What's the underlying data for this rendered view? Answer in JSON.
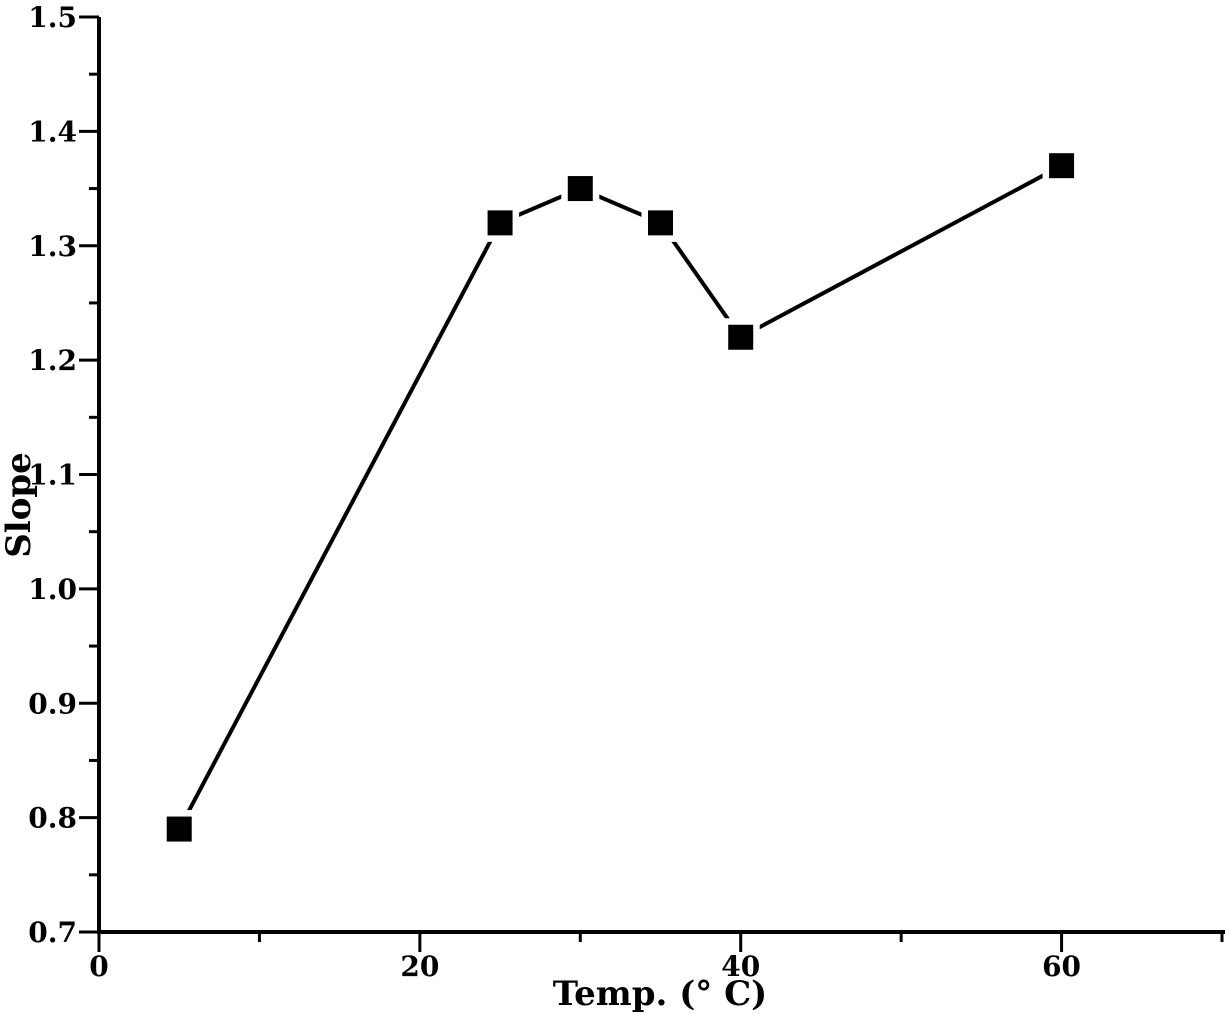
{
  "chart_data": {
    "type": "line",
    "title": "",
    "xlabel": "Temp. (° C)",
    "ylabel": "Slope",
    "xlim": [
      0,
      70
    ],
    "ylim": [
      0.7,
      1.5
    ],
    "x_ticks": [
      0,
      20,
      40,
      60
    ],
    "x_tick_labels": [
      "0",
      "20",
      "40",
      "60"
    ],
    "y_ticks": [
      0.7,
      0.8,
      0.9,
      1.0,
      1.1,
      1.2,
      1.3,
      1.4,
      1.5
    ],
    "y_tick_labels": [
      "0.7",
      "0.8",
      "0.9",
      "1.0",
      "1.1",
      "1.2",
      "1.3",
      "1.4",
      "1.5"
    ],
    "grid": false,
    "marker": "square",
    "color": "#000000",
    "series": [
      {
        "x": [
          5,
          25,
          30,
          35,
          40,
          60
        ],
        "y": [
          0.79,
          1.32,
          1.35,
          1.32,
          1.22,
          1.37
        ]
      }
    ]
  }
}
